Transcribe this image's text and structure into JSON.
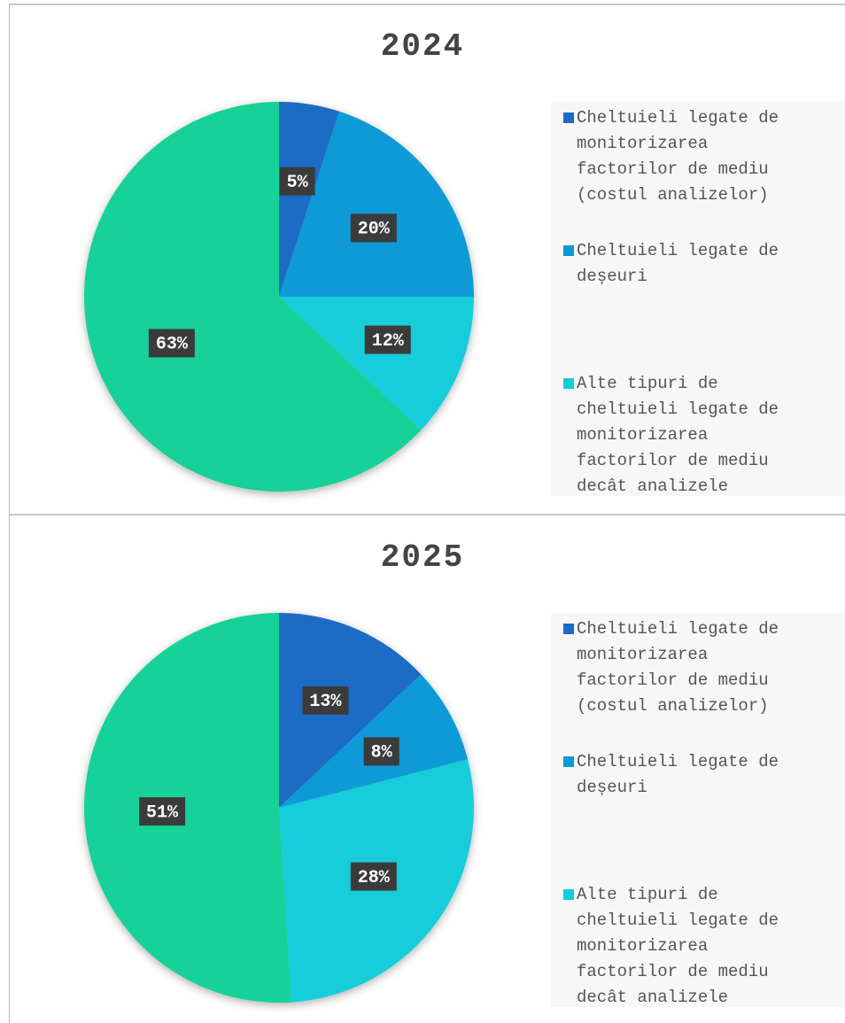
{
  "chart_data": [
    {
      "type": "pie",
      "title": "2024",
      "categories": [
        "Cheltuieli legate de monitorizarea factorilor de mediu (costul analizelor)",
        "Cheltuieli legate de deșeuri",
        "Alte tipuri de cheltuieli legate de monitorizarea factorilor de mediu decât analizele",
        null
      ],
      "values": [
        5,
        20,
        12,
        63
      ],
      "value_labels": [
        "5%",
        "20%",
        "12%",
        "63%"
      ],
      "colors": [
        "#1a6cc6",
        "#0b9ad6",
        "#12cdd9",
        "#14d198"
      ]
    },
    {
      "type": "pie",
      "title": "2025",
      "categories": [
        "Cheltuieli legate de monitorizarea factorilor de mediu (costul analizelor)",
        "Cheltuieli legate de deșeuri",
        "Alte tipuri de cheltuieli legate de monitorizarea factorilor de mediu decât analizele",
        null
      ],
      "values": [
        13,
        8,
        28,
        51
      ],
      "value_labels": [
        "13%",
        "8%",
        "28%",
        "51%"
      ],
      "colors": [
        "#1a6cc6",
        "#0b9ad6",
        "#12cdd9",
        "#14d198"
      ]
    }
  ]
}
